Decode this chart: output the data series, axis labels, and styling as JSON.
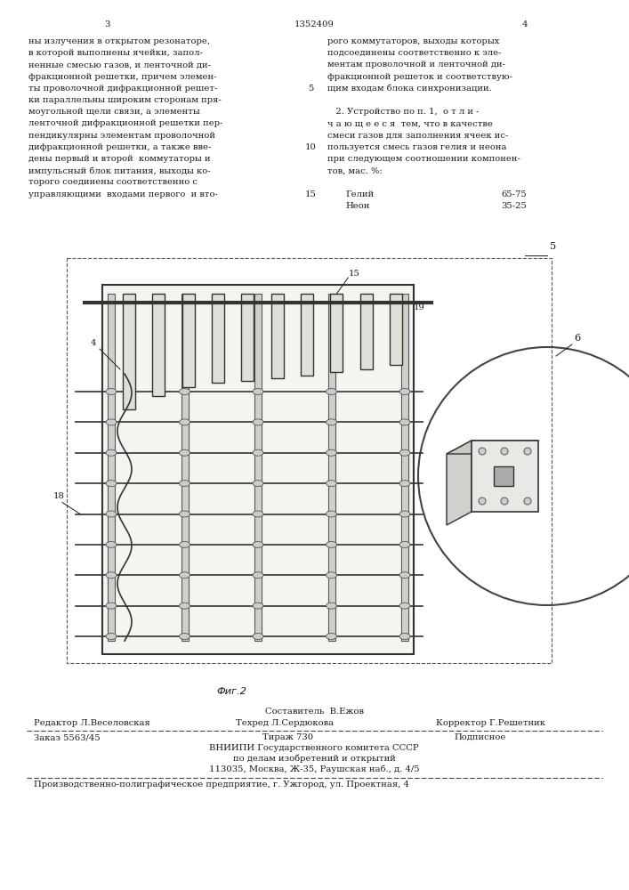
{
  "page_number_left": "3",
  "patent_number": "1352409",
  "page_number_right": "4",
  "col1_text": [
    "ны излучения в открытом резонаторе,",
    "в которой выполнены ячейки, запол-",
    "ненные смесью газов, и ленточной ди-",
    "фракционной решетки, причем элемен-",
    "ты проволочной дифракционной решет-",
    "ки параллельны широким сторонам пря-",
    "моугольной щели связи, а элементы",
    "ленточной дифракционной решетки пер-",
    "пендикулярны элементам проволочной",
    "дифракционной решетки, а также вве-",
    "дены первый и второй  коммутаторы и",
    "импульсный блок питания, выходы ко-",
    "торого соединены соответственно с",
    "управляющими  входами первого  и вто-"
  ],
  "col2_text": [
    "рого коммутаторов, выходы которых",
    "подсоединены соответственно к эле-",
    "ментам проволочной и ленточной ди-",
    "фракционной решеток и соответствую-",
    "щим входам блока синхронизации.",
    "",
    "   2. Устройство по п. 1,  о т л и -",
    "ч а ю щ е е с я  тем, что в качестве",
    "смеси газов для заполнения ячеек ис-",
    "пользуется смесь газов гелия и неона",
    "при следующем соотношении компонен-",
    "тов, мас. %:"
  ],
  "gas_rows": [
    [
      "Гелий",
      "65-75"
    ],
    [
      "Неон",
      "35-25"
    ]
  ],
  "fig_caption": "Фиг.2",
  "footer_composer": "Составитель  В.Ежов",
  "footer_editor": "Редактор Л.Веселовская",
  "footer_tech": "Техред Л.Сердюкова",
  "footer_corrector": "Корректор Г.Решетник",
  "footer_order": "Заказ 5563/45",
  "footer_print": "Тираж 730",
  "footer_sub": "Подписное",
  "footer_org1": "ВНИИПИ Государственного комитета СССР",
  "footer_org2": "по делам изобретений и открытий",
  "footer_org3": "113035, Москва, Ж-35, Раушская наб., д. 4/5",
  "footer_prod": "Производственно-полиграфическое предприятие, г. Ужгород, ул. Проектная, 4",
  "bg_color": "#ffffff",
  "text_color": "#1a1a1a",
  "font_size_body": 7.2,
  "font_size_small": 6.5
}
